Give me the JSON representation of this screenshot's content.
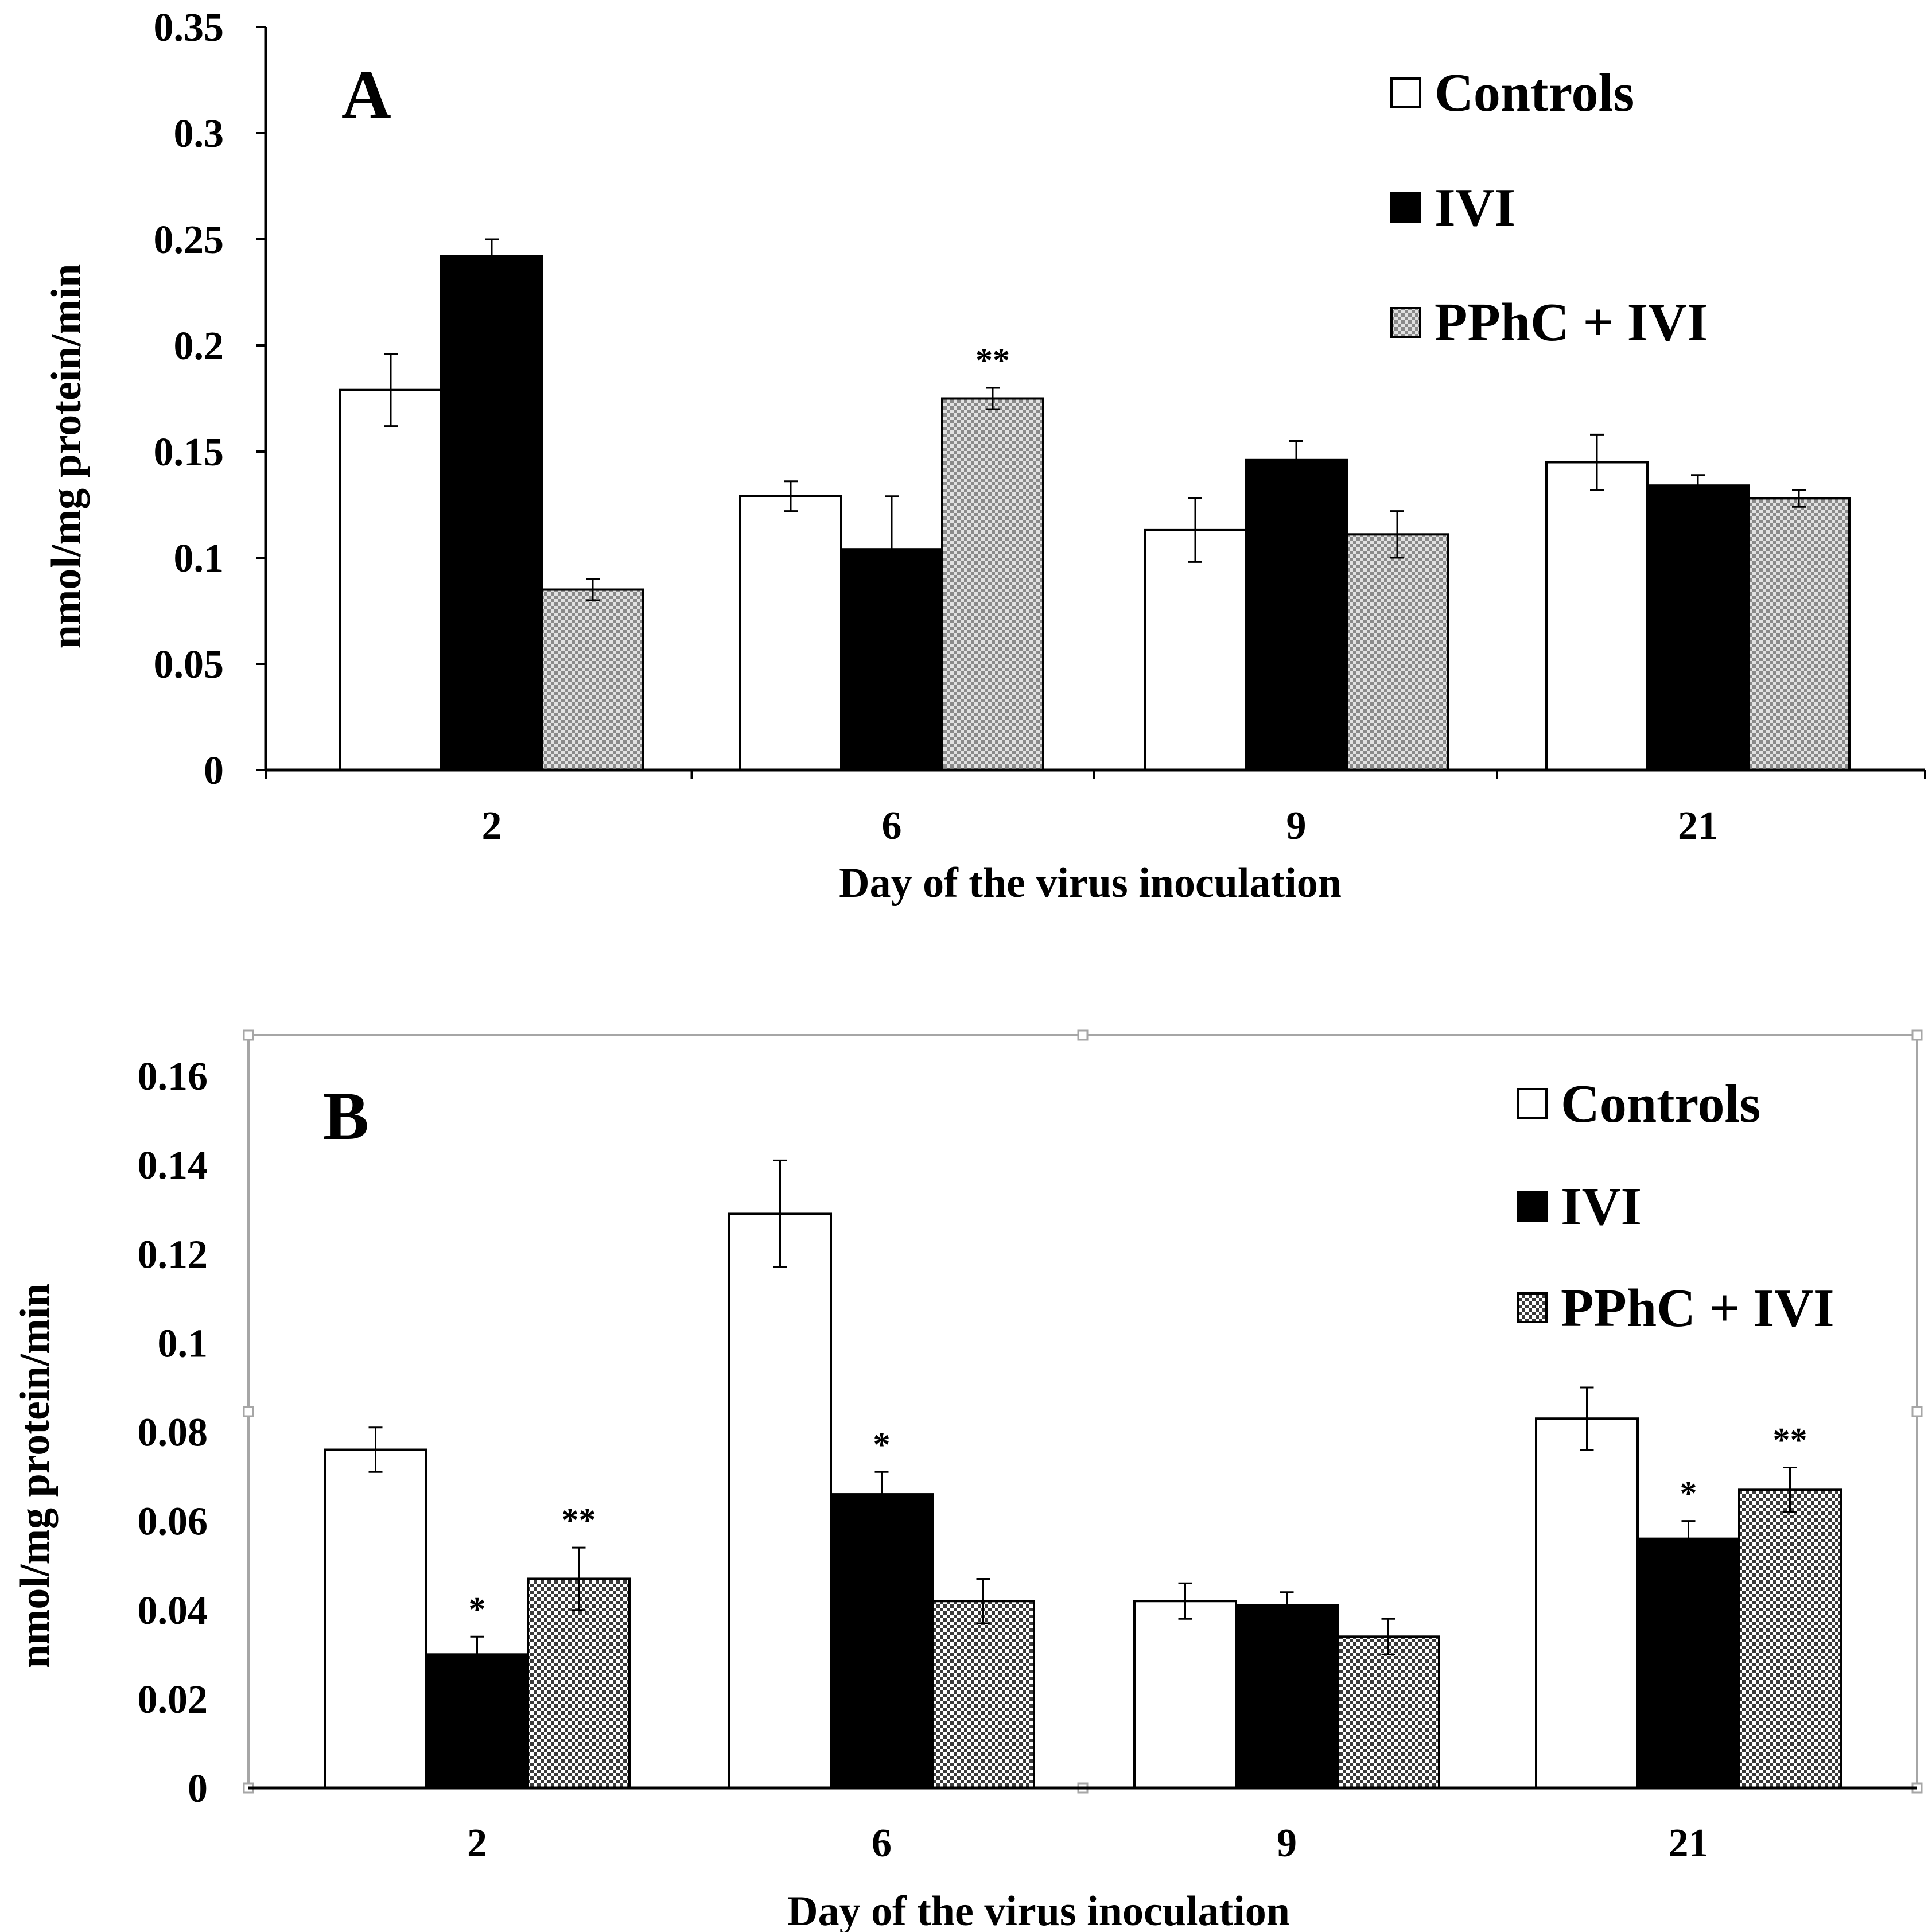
{
  "chart_data": [
    {
      "type": "bar",
      "panel": "A",
      "categories": [
        "2",
        "6",
        "9",
        "21"
      ],
      "xlabel": "Day of the virus inoculation",
      "ylabel": "nmol/mg protein/min",
      "ylim": [
        0,
        0.35
      ],
      "ytick_labels": [
        "0",
        "0.05",
        "0.1",
        "0.15",
        "0.2",
        "0.25",
        "0.3",
        "0.35"
      ],
      "series": [
        {
          "name": "Controls",
          "values": [
            0.179,
            0.129,
            0.113,
            0.145
          ],
          "errors": [
            0.017,
            0.007,
            0.015,
            0.013
          ],
          "significance": [
            "",
            "",
            "",
            ""
          ]
        },
        {
          "name": "IVI",
          "values": [
            0.242,
            0.104,
            0.146,
            0.134
          ],
          "errors": [
            0.008,
            0.025,
            0.009,
            0.005
          ],
          "significance": [
            "",
            "",
            "",
            ""
          ]
        },
        {
          "name": "PPhC + IVI",
          "values": [
            0.085,
            0.175,
            0.111,
            0.128
          ],
          "errors": [
            0.005,
            0.005,
            0.011,
            0.004
          ],
          "significance": [
            "",
            "**",
            "",
            ""
          ]
        }
      ],
      "legend_position": "top-right",
      "grid": false
    },
    {
      "type": "bar",
      "panel": "B",
      "categories": [
        "2",
        "6",
        "9",
        "21"
      ],
      "xlabel": "Day of the virus inoculation",
      "ylabel": "nmol/mg protein/min",
      "ylim": [
        0,
        0.16
      ],
      "ytick_labels": [
        "0",
        "0.02",
        "0.04",
        "0.06",
        "0.08",
        "0.1",
        "0.12",
        "0.14",
        "0.16"
      ],
      "series": [
        {
          "name": "Controls",
          "values": [
            0.076,
            0.129,
            0.042,
            0.083
          ],
          "errors": [
            0.005,
            0.012,
            0.004,
            0.007
          ],
          "significance": [
            "",
            "",
            "",
            ""
          ]
        },
        {
          "name": "IVI",
          "values": [
            0.03,
            0.066,
            0.041,
            0.056
          ],
          "errors": [
            0.004,
            0.005,
            0.003,
            0.004
          ],
          "significance": [
            "*",
            "*",
            "",
            "*"
          ]
        },
        {
          "name": "PPhC + IVI",
          "values": [
            0.047,
            0.042,
            0.034,
            0.067
          ],
          "errors": [
            0.007,
            0.005,
            0.004,
            0.005
          ],
          "significance": [
            "**",
            "",
            "",
            "**"
          ]
        }
      ],
      "legend_position": "top-right",
      "grid": false
    }
  ],
  "colors": {
    "Controls": "#ffffff",
    "IVI": "#000000",
    "PPhC + IVI": "#c8c8c8",
    "axis": "#000000",
    "frame": "#a6a6a6"
  },
  "icons": {
    "legend_swatch": "square-swatch-icon",
    "selection_handle": "resize-handle-icon"
  }
}
